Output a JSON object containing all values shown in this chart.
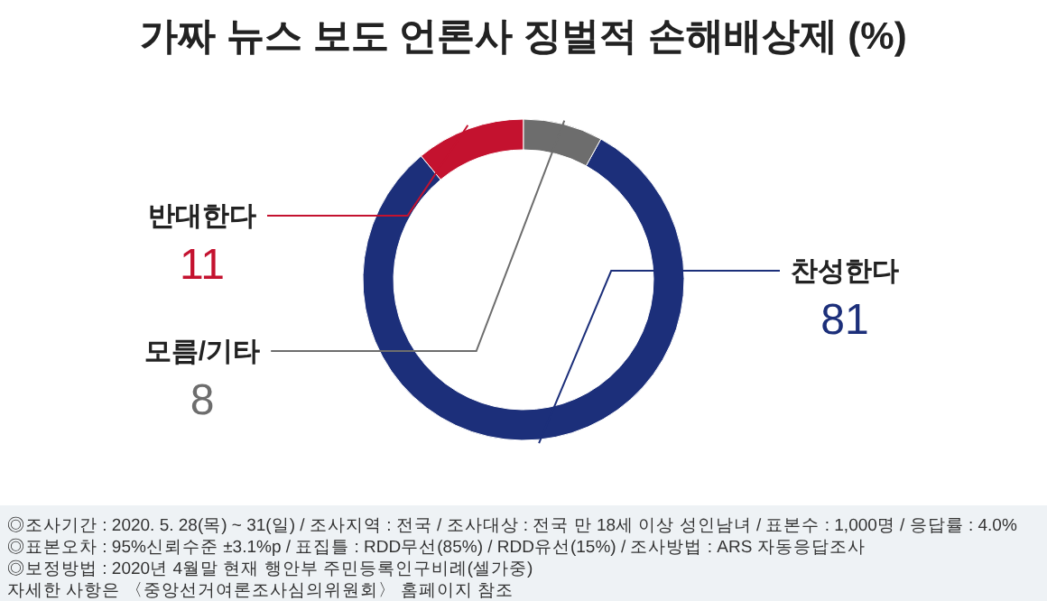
{
  "chart_data": {
    "type": "donut",
    "title": "가짜 뉴스 보도 언론사 징벌적 손해배상제 (%)",
    "categories": [
      "찬성한다",
      "반대한다",
      "모름/기타"
    ],
    "values": [
      81,
      11,
      8
    ],
    "colors": [
      "#1c2f7a",
      "#c4122f",
      "#6d6d6d"
    ],
    "data_labels": true,
    "annotations": [
      "◎조사기간 : 2020. 5. 28(목) ~ 31(일) / 조사지역 : 전국 / 조사대상 : 전국 만 18세 이상 성인남녀 / 표본수 : 1,000명 / 응답률 : 4.0%",
      "◎표본오차 : 95%신뢰수준 ±3.1%p / 표집틀 : RDD무선(85%) / RDD유선(15%) / 조사방법 : ARS 자동응답조사",
      "◎보정방법 : 2020년 4월말 현재 행안부 주민등록인구비례(셀가중)",
      "자세한 사항은 〈중앙선거여론조사심의위원회〉 홈페이지 참조"
    ]
  }
}
